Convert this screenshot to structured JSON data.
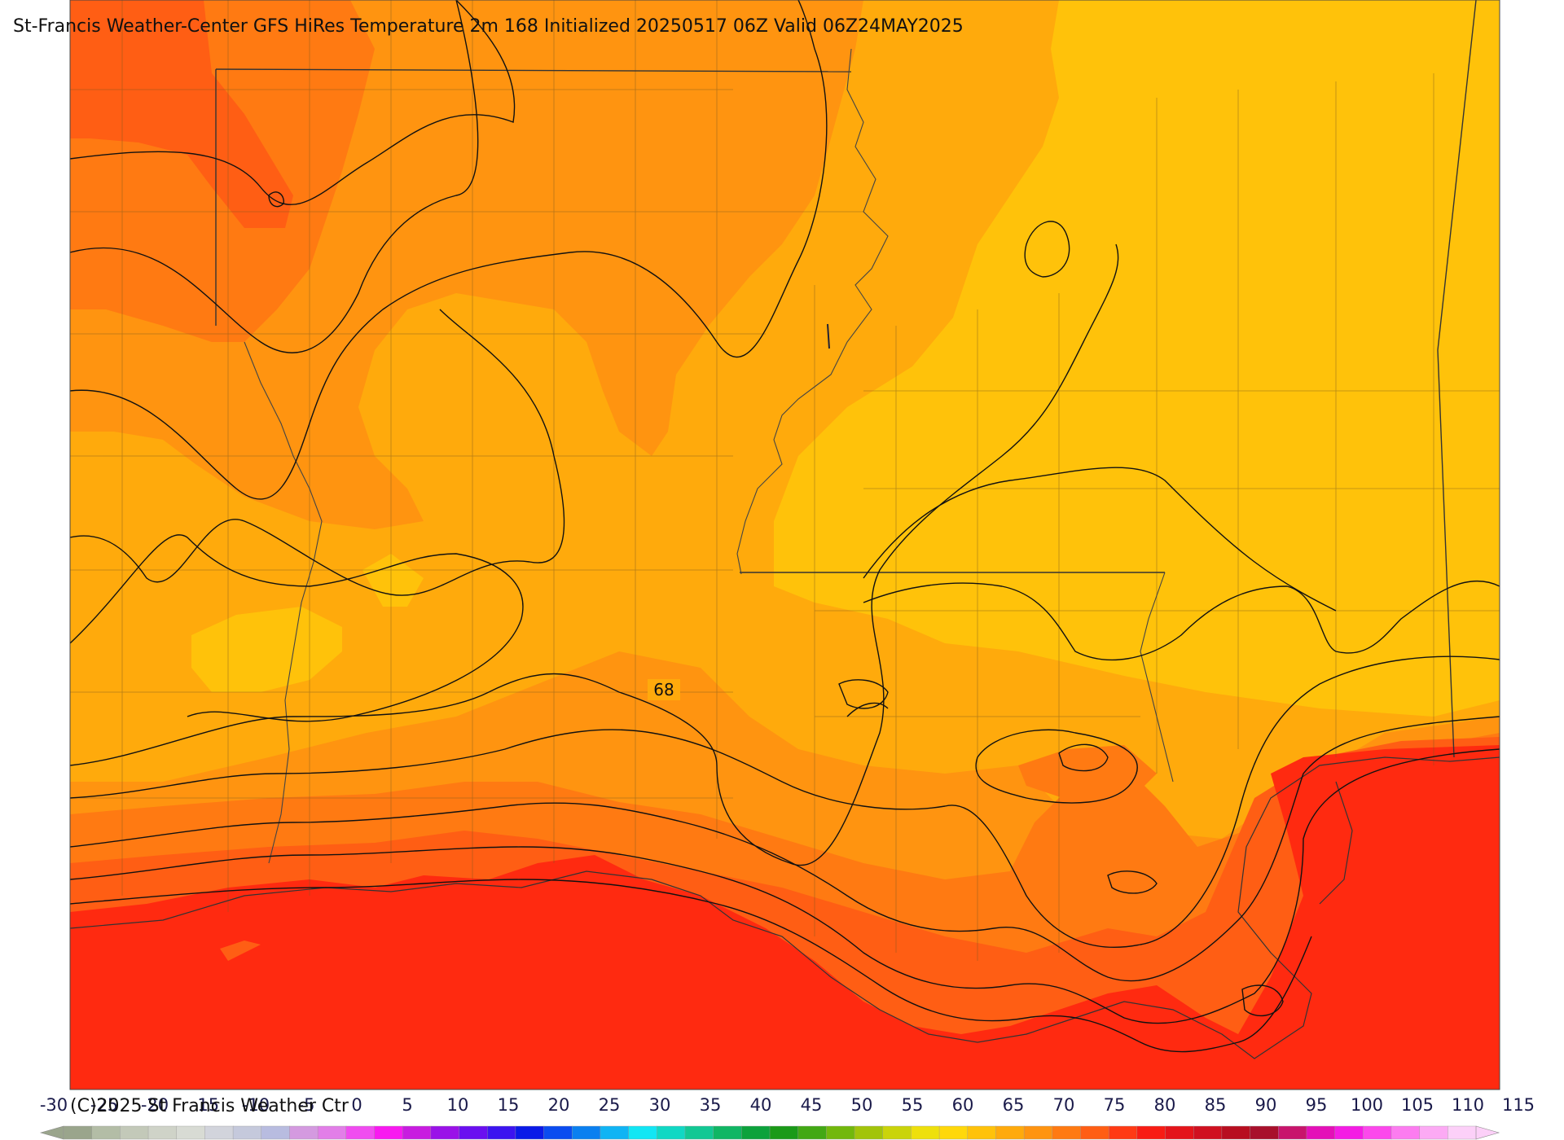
{
  "title": "St-Francis Weather-Center GFS HiRes Temperature 2m  168 Initialized 20250517 06Z Valid 06Z24MAY2025",
  "contour_label": "68",
  "copyright": "(C)2025 St Francis Weather Ctr",
  "colorbar": {
    "tick_labels": [
      "-30",
      "-25",
      "-20",
      "-15",
      "-10",
      "-5",
      "0",
      "5",
      "10",
      "15",
      "20",
      "25",
      "30",
      "35",
      "40",
      "45",
      "50",
      "55",
      "60",
      "65",
      "70",
      "75",
      "80",
      "85",
      "90",
      "95",
      "100",
      "105",
      "110",
      "115"
    ],
    "colors": [
      "#9aa58c",
      "#b3bda6",
      "#c3c9b9",
      "#cfd3c8",
      "#d8dbd4",
      "#d2d4dc",
      "#c5c9dc",
      "#b8bce0",
      "#d49ae0",
      "#e27ee8",
      "#f04cf0",
      "#f819f0",
      "#c81ce0",
      "#9a12e8",
      "#6a0ff0",
      "#3c14f0",
      "#0a1ae8",
      "#0a4cf0",
      "#0a80f0",
      "#10b4f4",
      "#12e6f4",
      "#10d8c4",
      "#12c894",
      "#10b664",
      "#0ca23c",
      "#1a9a18",
      "#42a814",
      "#72b80c",
      "#a2c40a",
      "#cad40a",
      "#eee00c",
      "#ffd80a",
      "#ffc20a",
      "#ffaa0c",
      "#ff9410",
      "#ff7a12",
      "#ff5e14",
      "#ff3a14",
      "#f81c14",
      "#e4141a",
      "#d01020",
      "#b80e20",
      "#a8102c",
      "#c8146c",
      "#e410b8",
      "#f41ce4",
      "#fc48ec",
      "#fc7cf0",
      "#fcaaf4",
      "#fcd0f8"
    ]
  },
  "field_colors": {
    "band_60_65": "#ffc20a",
    "band_65_70": "#ffaa0c",
    "band_70_75": "#ff9410",
    "band_75_80": "#ff7a12",
    "band_80_85": "#ff5e14",
    "band_85_90": "#ff2a10"
  }
}
